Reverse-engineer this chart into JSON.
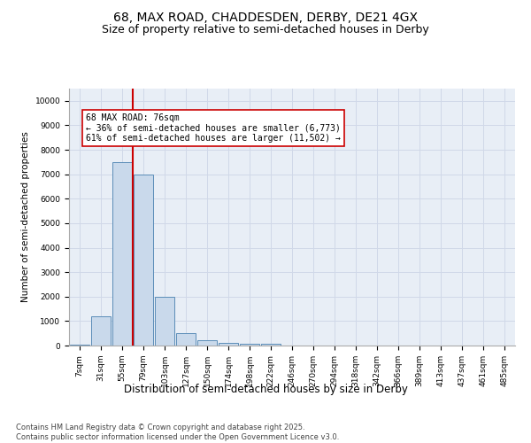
{
  "title1": "68, MAX ROAD, CHADDESDEN, DERBY, DE21 4GX",
  "title2": "Size of property relative to semi-detached houses in Derby",
  "xlabel": "Distribution of semi-detached houses by size in Derby",
  "ylabel": "Number of semi-detached properties",
  "categories": [
    "7sqm",
    "31sqm",
    "55sqm",
    "79sqm",
    "103sqm",
    "127sqm",
    "150sqm",
    "174sqm",
    "198sqm",
    "222sqm",
    "246sqm",
    "270sqm",
    "294sqm",
    "318sqm",
    "342sqm",
    "366sqm",
    "389sqm",
    "413sqm",
    "437sqm",
    "461sqm",
    "485sqm"
  ],
  "values": [
    30,
    1200,
    7500,
    7000,
    2000,
    500,
    200,
    100,
    80,
    70,
    0,
    0,
    0,
    0,
    0,
    0,
    0,
    0,
    0,
    0,
    0
  ],
  "bar_color": "#c9d9eb",
  "bar_edge_color": "#5b8db8",
  "grid_color": "#d0d8e8",
  "bg_color": "#e8eef6",
  "annotation_line1": "68 MAX ROAD: 76sqm",
  "annotation_line2": "← 36% of semi-detached houses are smaller (6,773)",
  "annotation_line3": "61% of semi-detached houses are larger (11,502) →",
  "vline_color": "#cc0000",
  "box_color": "#cc0000",
  "ylim": [
    0,
    10500
  ],
  "yticks": [
    0,
    1000,
    2000,
    3000,
    4000,
    5000,
    6000,
    7000,
    8000,
    9000,
    10000
  ],
  "footnote": "Contains HM Land Registry data © Crown copyright and database right 2025.\nContains public sector information licensed under the Open Government Licence v3.0.",
  "title1_fontsize": 10,
  "title2_fontsize": 9,
  "tick_fontsize": 6.5,
  "ylabel_fontsize": 7.5,
  "xlabel_fontsize": 8.5,
  "annotation_fontsize": 7,
  "footnote_fontsize": 6
}
